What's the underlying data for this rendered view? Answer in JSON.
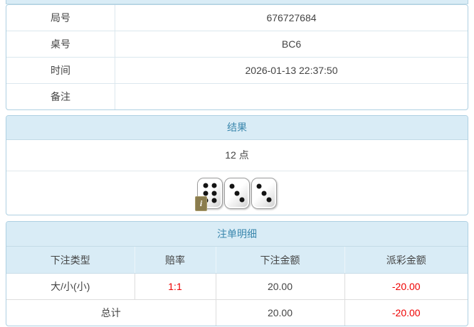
{
  "colors": {
    "accent_text": "#3a87ad",
    "header_bg": "#d9ecf6",
    "panel_border": "#aed0e2",
    "negative": "#ee0000",
    "text": "#444444"
  },
  "info": {
    "rows": [
      {
        "label": "局号",
        "value": "676727684"
      },
      {
        "label": "桌号",
        "value": "BC6"
      },
      {
        "label": "时间",
        "value": "2026-01-13 22:37:50"
      },
      {
        "label": "备注",
        "value": ""
      }
    ]
  },
  "result": {
    "title": "结果",
    "total": "12 点",
    "dice": [
      6,
      3,
      3
    ],
    "info_badge": "i"
  },
  "bets": {
    "title": "注单明细",
    "columns": [
      "下注类型",
      "赔率",
      "下注金额",
      "派彩金额"
    ],
    "rows": [
      {
        "type": "大/小(小)",
        "odds": "1:1",
        "amount": "20.00",
        "payout": "-20.00"
      }
    ],
    "total": {
      "label": "总计",
      "amount": "20.00",
      "payout": "-20.00"
    }
  }
}
